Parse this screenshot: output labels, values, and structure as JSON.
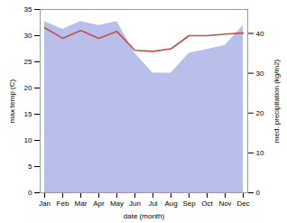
{
  "chart_data": {
    "type": "line",
    "xlabel": "date (month)",
    "ylabel": "max temp (C)",
    "y2label": "med. precipitation (kg/m2)",
    "categories": [
      "Jan",
      "Feb",
      "Mar",
      "Apr",
      "May",
      "Jun",
      "Jul",
      "Aug",
      "Sep",
      "Oct",
      "Nov",
      "Dec"
    ],
    "series": [
      {
        "type": "area",
        "axis": "y2",
        "color": "#b0b8e8",
        "values": [
          43,
          41,
          43,
          42,
          43,
          35,
          30,
          30,
          35,
          36,
          37,
          42
        ]
      },
      {
        "type": "line",
        "color": "#c0504d",
        "values": [
          31.5,
          29.5,
          31.0,
          29.5,
          30.8,
          27.2,
          27.0,
          27.5,
          30.0,
          30.0,
          30.3,
          30.5
        ]
      }
    ],
    "ylim": [
      0,
      35
    ],
    "yticks": [
      0,
      5,
      10,
      15,
      20,
      25,
      30,
      35
    ],
    "y2lim": [
      0,
      46
    ],
    "y2ticks": [
      0,
      10,
      20,
      30,
      40
    ],
    "grid": false
  }
}
